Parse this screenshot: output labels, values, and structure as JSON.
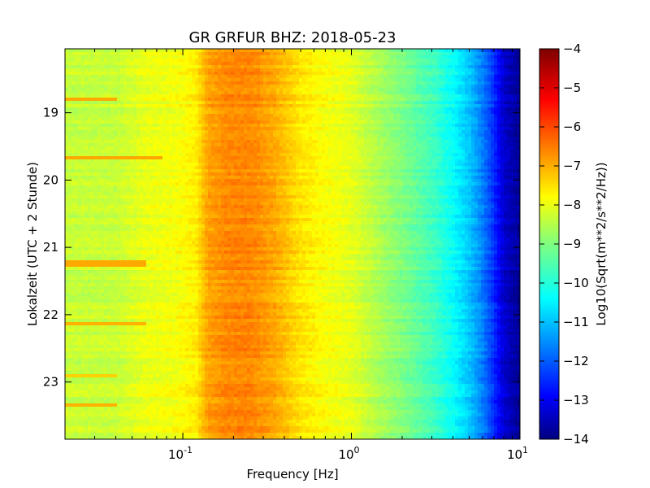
{
  "chart_data": {
    "type": "heatmap",
    "title": "GR GRFUR BHZ: 2018-05-23",
    "xlabel": "Frequency [Hz]",
    "ylabel": "Lokalzeit (UTC + 2 Stunde)",
    "x_scale": "log",
    "xlim": [
      0.02,
      10
    ],
    "ylim": [
      18.05,
      23.85
    ],
    "y_inverted": true,
    "x_ticks": [
      {
        "value": 0.1,
        "base": "10",
        "exp": "-1"
      },
      {
        "value": 1,
        "base": "10",
        "exp": "0"
      },
      {
        "value": 10,
        "base": "10",
        "exp": "1"
      }
    ],
    "y_ticks": [
      {
        "value": 19,
        "label": "19"
      },
      {
        "value": 20,
        "label": "20"
      },
      {
        "value": 21,
        "label": "21"
      },
      {
        "value": 22,
        "label": "22"
      },
      {
        "value": 23,
        "label": "23"
      }
    ],
    "colorbar": {
      "label": "Log10(Sqrt(m**2/s**2/Hz))",
      "min": -14,
      "max": -4,
      "colormap": "jet",
      "ticks": [
        {
          "value": -4,
          "label": "−4"
        },
        {
          "value": -5,
          "label": "−5"
        },
        {
          "value": -6,
          "label": "−6"
        },
        {
          "value": -7,
          "label": "−7"
        },
        {
          "value": -8,
          "label": "−8"
        },
        {
          "value": -9,
          "label": "−9"
        },
        {
          "value": -10,
          "label": "−10"
        },
        {
          "value": -11,
          "label": "−11"
        },
        {
          "value": -12,
          "label": "−12"
        },
        {
          "value": -13,
          "label": "−13"
        },
        {
          "value": -14,
          "label": "−14"
        }
      ]
    },
    "spectrum_profile": [
      {
        "freq": 0.02,
        "value": -8.3
      },
      {
        "freq": 0.04,
        "value": -8.3
      },
      {
        "freq": 0.06,
        "value": -7.95
      },
      {
        "freq": 0.09,
        "value": -7.85
      },
      {
        "freq": 0.12,
        "value": -7.6
      },
      {
        "freq": 0.14,
        "value": -6.85
      },
      {
        "freq": 0.18,
        "value": -6.6
      },
      {
        "freq": 0.25,
        "value": -6.55
      },
      {
        "freq": 0.35,
        "value": -6.9
      },
      {
        "freq": 0.5,
        "value": -7.5
      },
      {
        "freq": 0.7,
        "value": -7.8
      },
      {
        "freq": 1.0,
        "value": -8.0
      },
      {
        "freq": 1.5,
        "value": -8.6
      },
      {
        "freq": 2.0,
        "value": -9.0
      },
      {
        "freq": 3.0,
        "value": -9.6
      },
      {
        "freq": 4.0,
        "value": -10.2
      },
      {
        "freq": 5.0,
        "value": -10.8
      },
      {
        "freq": 6.0,
        "value": -11.5
      },
      {
        "freq": 7.0,
        "value": -12.3
      },
      {
        "freq": 8.0,
        "value": -13.2
      },
      {
        "freq": 10.0,
        "value": -13.8
      }
    ],
    "strong_rows": [
      {
        "time": 18.82,
        "value": -6.9,
        "freq_max": 0.04
      },
      {
        "time": 19.67,
        "value": -6.9,
        "freq_max": 0.075
      },
      {
        "time": 21.24,
        "value": -6.9,
        "freq_max": 0.06
      },
      {
        "time": 22.15,
        "value": -7.0,
        "freq_max": 0.06
      },
      {
        "time": 22.92,
        "value": -7.3,
        "freq_max": 0.04
      },
      {
        "time": 23.35,
        "value": -7.0,
        "freq_max": 0.04
      }
    ]
  }
}
